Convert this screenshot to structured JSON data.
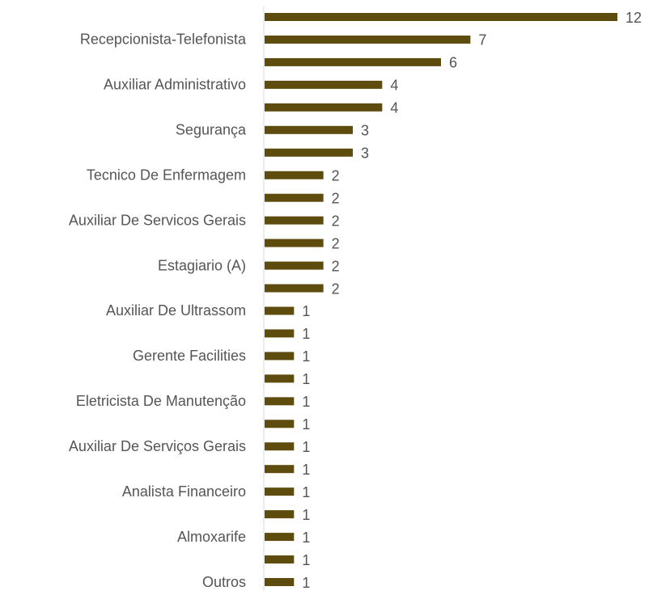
{
  "chart_data": {
    "type": "bar",
    "orientation": "horizontal",
    "categories": [
      null,
      "Recepcionista-Telefonista",
      null,
      "Auxiliar Administrativo",
      null,
      "Segurança",
      null,
      "Tecnico De Enfermagem",
      null,
      "Auxiliar De Servicos Gerais",
      null,
      "Estagiario (A)",
      null,
      "Auxiliar De Ultrassom",
      null,
      "Gerente Facilities",
      null,
      "Eletricista De Manutenção",
      null,
      "Auxiliar De Serviços Gerais",
      null,
      "Analista Financeiro",
      null,
      "Almoxarife",
      null,
      "Outros"
    ],
    "values": [
      12,
      7,
      6,
      4,
      4,
      3,
      3,
      2,
      2,
      2,
      2,
      2,
      2,
      1,
      1,
      1,
      1,
      1,
      1,
      1,
      1,
      1,
      1,
      1,
      1,
      1
    ],
    "color": "#5e4b0e",
    "xlim": [
      0,
      12
    ]
  }
}
